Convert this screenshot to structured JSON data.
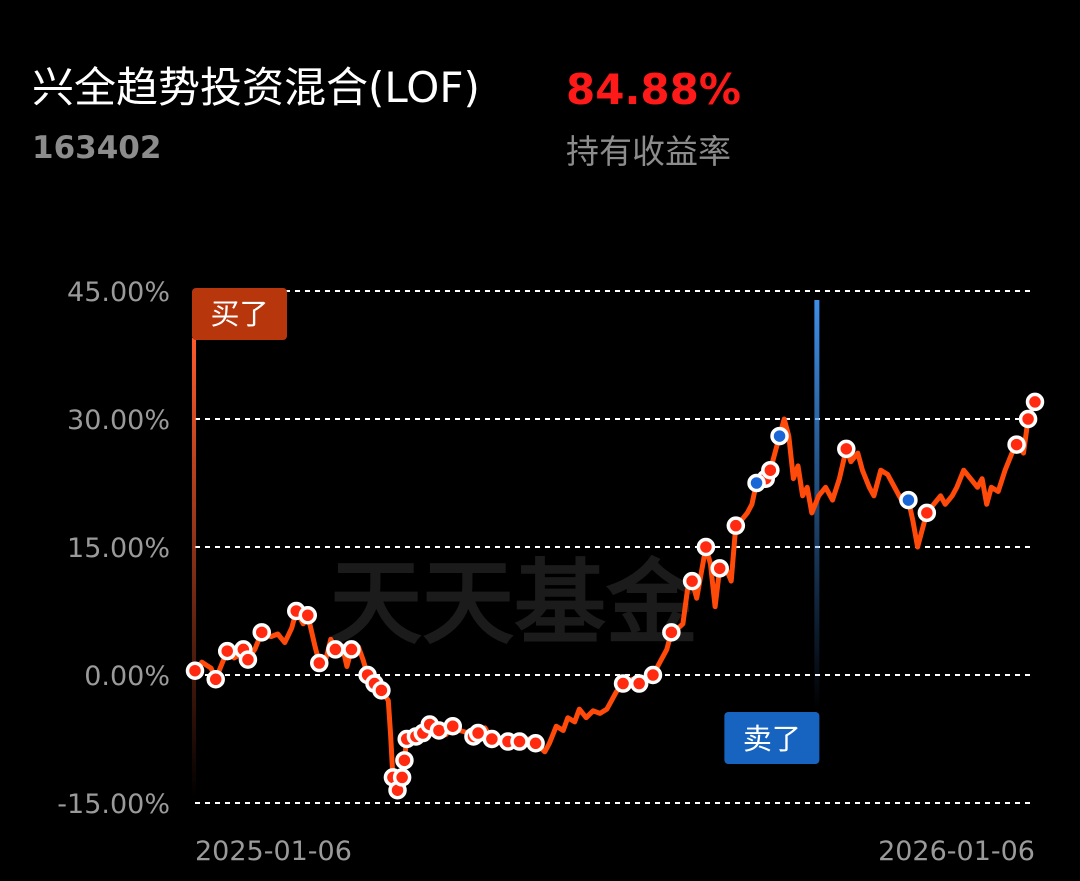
{
  "header": {
    "fund_name": "兴全趋势投资混合(LOF)",
    "fund_code": "163402",
    "return_value": "84.88%",
    "return_label": "持有收益率"
  },
  "watermark": "天天基金",
  "colors": {
    "line": "#ff4a0a",
    "buy_marker": "#ff2a10",
    "sell_marker": "#1a66d6",
    "buy_flag": "#b8360c",
    "sell_flag": "#1764c0",
    "grid": "#ffffff",
    "tick": "#9a9a9a"
  },
  "chart_data": {
    "type": "line",
    "x_start": "2025-01-06",
    "x_end": "2026-01-06",
    "xticks": [
      "2025-01-06",
      "2026-01-06"
    ],
    "yticks": [
      "45.00%",
      "30.00%",
      "15.00%",
      "0.00%",
      "-15.00%"
    ],
    "ytick_values": [
      45,
      30,
      15,
      0,
      -15
    ],
    "ylim": [
      -15,
      45
    ],
    "grid": "dashed-horizontal",
    "events": [
      {
        "label": "买了",
        "date": "2025-01-06",
        "type": "buy"
      },
      {
        "label": "卖了",
        "date": "2025-10-03",
        "type": "sell"
      }
    ],
    "series": [
      {
        "values": [
          [
            "2025-01-06",
            0.5
          ],
          [
            "2025-01-09",
            1.5
          ],
          [
            "2025-01-13",
            0.8
          ],
          [
            "2025-01-15",
            -0.5
          ],
          [
            "2025-01-18",
            1.5
          ],
          [
            "2025-01-20",
            2.8
          ],
          [
            "2025-01-23",
            2.0
          ],
          [
            "2025-01-25",
            2.3
          ],
          [
            "2025-01-27",
            3.0
          ],
          [
            "2025-01-29",
            1.8
          ],
          [
            "2025-02-01",
            3.0
          ],
          [
            "2025-02-04",
            5.0
          ],
          [
            "2025-02-08",
            4.5
          ],
          [
            "2025-02-11",
            4.8
          ],
          [
            "2025-02-14",
            3.8
          ],
          [
            "2025-02-17",
            5.5
          ],
          [
            "2025-02-19",
            7.5
          ],
          [
            "2025-02-22",
            6.0
          ],
          [
            "2025-02-24",
            7.0
          ],
          [
            "2025-02-27",
            3.5
          ],
          [
            "2025-03-01",
            1.4
          ],
          [
            "2025-03-04",
            2.0
          ],
          [
            "2025-03-06",
            4.2
          ],
          [
            "2025-03-08",
            3.0
          ],
          [
            "2025-03-11",
            3.4
          ],
          [
            "2025-03-13",
            1.0
          ],
          [
            "2025-03-15",
            3.0
          ],
          [
            "2025-03-18",
            3.3
          ],
          [
            "2025-03-20",
            1.8
          ],
          [
            "2025-03-22",
            0.0
          ],
          [
            "2025-03-25",
            -1.0
          ],
          [
            "2025-03-28",
            -1.8
          ],
          [
            "2025-03-31",
            -3.0
          ],
          [
            "2025-04-01",
            -7.0
          ],
          [
            "2025-04-02",
            -12.0
          ],
          [
            "2025-04-04",
            -13.5
          ],
          [
            "2025-04-06",
            -12.0
          ],
          [
            "2025-04-07",
            -10.0
          ],
          [
            "2025-04-08",
            -7.5
          ],
          [
            "2025-04-10",
            -8.0
          ],
          [
            "2025-04-12",
            -7.2
          ],
          [
            "2025-04-15",
            -6.8
          ],
          [
            "2025-04-18",
            -5.8
          ],
          [
            "2025-04-20",
            -7.0
          ],
          [
            "2025-04-22",
            -6.5
          ],
          [
            "2025-04-25",
            -7.0
          ],
          [
            "2025-04-28",
            -6.0
          ],
          [
            "2025-05-01",
            -6.5
          ],
          [
            "2025-05-05",
            -6.8
          ],
          [
            "2025-05-07",
            -7.2
          ],
          [
            "2025-05-09",
            -6.8
          ],
          [
            "2025-05-12",
            -6.2
          ],
          [
            "2025-05-15",
            -7.5
          ],
          [
            "2025-05-19",
            -8.0
          ],
          [
            "2025-05-22",
            -7.8
          ],
          [
            "2025-05-25",
            -7.3
          ],
          [
            "2025-05-27",
            -7.8
          ],
          [
            "2025-05-31",
            -7.5
          ],
          [
            "2025-06-03",
            -8.0
          ],
          [
            "2025-06-05",
            -8.5
          ],
          [
            "2025-06-07",
            -9.0
          ],
          [
            "2025-06-09",
            -8.0
          ],
          [
            "2025-06-12",
            -6.0
          ],
          [
            "2025-06-15",
            -6.5
          ],
          [
            "2025-06-17",
            -5.0
          ],
          [
            "2025-06-20",
            -5.5
          ],
          [
            "2025-06-22",
            -4.0
          ],
          [
            "2025-06-25",
            -5.0
          ],
          [
            "2025-06-28",
            -4.2
          ],
          [
            "2025-07-01",
            -4.5
          ],
          [
            "2025-07-04",
            -4.0
          ],
          [
            "2025-07-08",
            -2.0
          ],
          [
            "2025-07-11",
            -1.0
          ],
          [
            "2025-07-15",
            -0.5
          ],
          [
            "2025-07-18",
            -1.0
          ],
          [
            "2025-07-21",
            -0.5
          ],
          [
            "2025-07-24",
            0.0
          ],
          [
            "2025-07-27",
            1.5
          ],
          [
            "2025-07-30",
            3.0
          ],
          [
            "2025-08-01",
            5.0
          ],
          [
            "2025-08-04",
            5.5
          ],
          [
            "2025-08-06",
            6.0
          ],
          [
            "2025-08-08",
            10.0
          ],
          [
            "2025-08-10",
            11.0
          ],
          [
            "2025-08-12",
            9.0
          ],
          [
            "2025-08-14",
            12.0
          ],
          [
            "2025-08-16",
            15.0
          ],
          [
            "2025-08-18",
            13.0
          ],
          [
            "2025-08-20",
            8.0
          ],
          [
            "2025-08-22",
            12.5
          ],
          [
            "2025-08-24",
            13.0
          ],
          [
            "2025-08-27",
            11.0
          ],
          [
            "2025-08-29",
            17.5
          ],
          [
            "2025-08-31",
            18.0
          ],
          [
            "2025-09-03",
            19.0
          ],
          [
            "2025-09-05",
            20.0
          ],
          [
            "2025-09-07",
            22.5
          ],
          [
            "2025-09-09",
            22.5
          ],
          [
            "2025-09-11",
            23.0
          ],
          [
            "2025-09-13",
            24.0
          ],
          [
            "2025-09-15",
            26.0
          ],
          [
            "2025-09-17",
            28.0
          ],
          [
            "2025-09-19",
            30.0
          ],
          [
            "2025-09-21",
            28.0
          ],
          [
            "2025-09-23",
            23.0
          ],
          [
            "2025-09-25",
            24.5
          ],
          [
            "2025-09-27",
            21.0
          ],
          [
            "2025-09-29",
            22.0
          ],
          [
            "2025-10-01",
            19.0
          ],
          [
            "2025-10-04",
            21.0
          ],
          [
            "2025-10-07",
            22.0
          ],
          [
            "2025-10-10",
            20.5
          ],
          [
            "2025-10-13",
            23.0
          ],
          [
            "2025-10-16",
            26.5
          ],
          [
            "2025-10-18",
            25.0
          ],
          [
            "2025-10-21",
            26.0
          ],
          [
            "2025-10-23",
            24.0
          ],
          [
            "2025-10-26",
            22.0
          ],
          [
            "2025-10-28",
            21.0
          ],
          [
            "2025-10-31",
            24.0
          ],
          [
            "2025-11-03",
            23.5
          ],
          [
            "2025-11-06",
            22.0
          ],
          [
            "2025-11-09",
            20.5
          ],
          [
            "2025-11-12",
            20.5
          ],
          [
            "2025-11-14",
            18.0
          ],
          [
            "2025-11-16",
            15.0
          ],
          [
            "2025-11-18",
            17.0
          ],
          [
            "2025-11-20",
            19.0
          ],
          [
            "2025-11-23",
            20.0
          ],
          [
            "2025-11-26",
            21.0
          ],
          [
            "2025-11-28",
            20.0
          ],
          [
            "2025-12-01",
            21.0
          ],
          [
            "2025-12-03",
            22.0
          ],
          [
            "2025-12-06",
            24.0
          ],
          [
            "2025-12-09",
            23.0
          ],
          [
            "2025-12-12",
            22.0
          ],
          [
            "2025-12-14",
            23.0
          ],
          [
            "2025-12-16",
            20.0
          ],
          [
            "2025-12-18",
            22.0
          ],
          [
            "2025-12-21",
            21.5
          ],
          [
            "2025-12-24",
            24.0
          ],
          [
            "2025-12-27",
            26.0
          ],
          [
            "2025-12-29",
            27.0
          ],
          [
            "2026-01-01",
            26.0
          ],
          [
            "2026-01-03",
            30.0
          ],
          [
            "2026-01-06",
            32.0
          ]
        ]
      }
    ],
    "buy_markers": [
      "2025-01-06",
      "2025-01-15",
      "2025-01-20",
      "2025-01-27",
      "2025-01-29",
      "2025-02-04",
      "2025-02-19",
      "2025-02-24",
      "2025-03-01",
      "2025-03-08",
      "2025-03-15",
      "2025-03-22",
      "2025-03-25",
      "2025-03-28",
      "2025-04-02",
      "2025-04-04",
      "2025-04-06",
      "2025-04-07",
      "2025-04-08",
      "2025-04-12",
      "2025-04-15",
      "2025-04-18",
      "2025-04-22",
      "2025-04-28",
      "2025-05-07",
      "2025-05-09",
      "2025-05-15",
      "2025-05-22",
      "2025-05-27",
      "2025-06-03",
      "2025-07-11",
      "2025-07-18",
      "2025-07-24",
      "2025-08-01",
      "2025-08-10",
      "2025-08-16",
      "2025-08-22",
      "2025-08-29",
      "2025-09-11",
      "2025-09-13",
      "2025-10-16",
      "2025-11-20",
      "2025-12-29",
      "2026-01-03",
      "2026-01-06"
    ],
    "sell_markers": [
      "2025-09-07",
      "2025-09-17",
      "2025-11-12"
    ]
  }
}
